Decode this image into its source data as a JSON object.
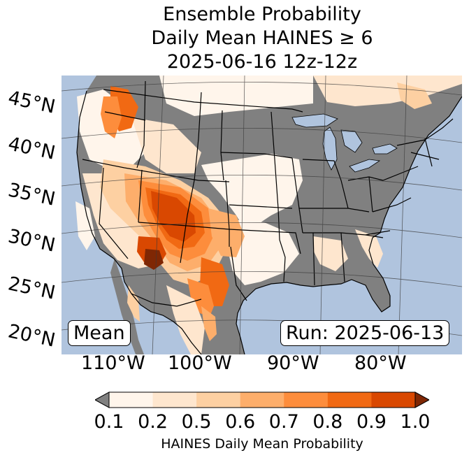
{
  "title": {
    "line1": "Ensemble Probability",
    "line2": "Daily Mean HAINES ≥ 6",
    "line3": "2025-06-16 12z-12z"
  },
  "map": {
    "lat_labels": [
      "45°N",
      "40°N",
      "35°N",
      "30°N",
      "25°N",
      "20°N"
    ],
    "lon_labels": [
      "110°W",
      "100°W",
      "90°W",
      "80°W"
    ],
    "mean_label": "Mean",
    "run_label": "Run: 2025-06-13",
    "colors": {
      "ocean": "#b0c4de",
      "land_below_threshold": "#808080",
      "borders": "#000000"
    }
  },
  "colorbar": {
    "label": "HAINES Daily Mean Probability",
    "ticks": [
      "0.1",
      "0.2",
      "0.5",
      "0.6",
      "0.7",
      "0.8",
      "0.9",
      "1.0"
    ],
    "under_color": "#808080",
    "over_color": "#7f2704",
    "bins": [
      {
        "from": "0.1",
        "to": "0.2",
        "color": "#fff5eb"
      },
      {
        "from": "0.2",
        "to": "0.5",
        "color": "#fee6ce"
      },
      {
        "from": "0.5",
        "to": "0.6",
        "color": "#fdd0a2"
      },
      {
        "from": "0.6",
        "to": "0.7",
        "color": "#fdae6b"
      },
      {
        "from": "0.7",
        "to": "0.8",
        "color": "#fd8d3c"
      },
      {
        "from": "0.8",
        "to": "0.9",
        "color": "#f16913"
      },
      {
        "from": "0.9",
        "to": "1.0",
        "color": "#d94801"
      }
    ]
  }
}
